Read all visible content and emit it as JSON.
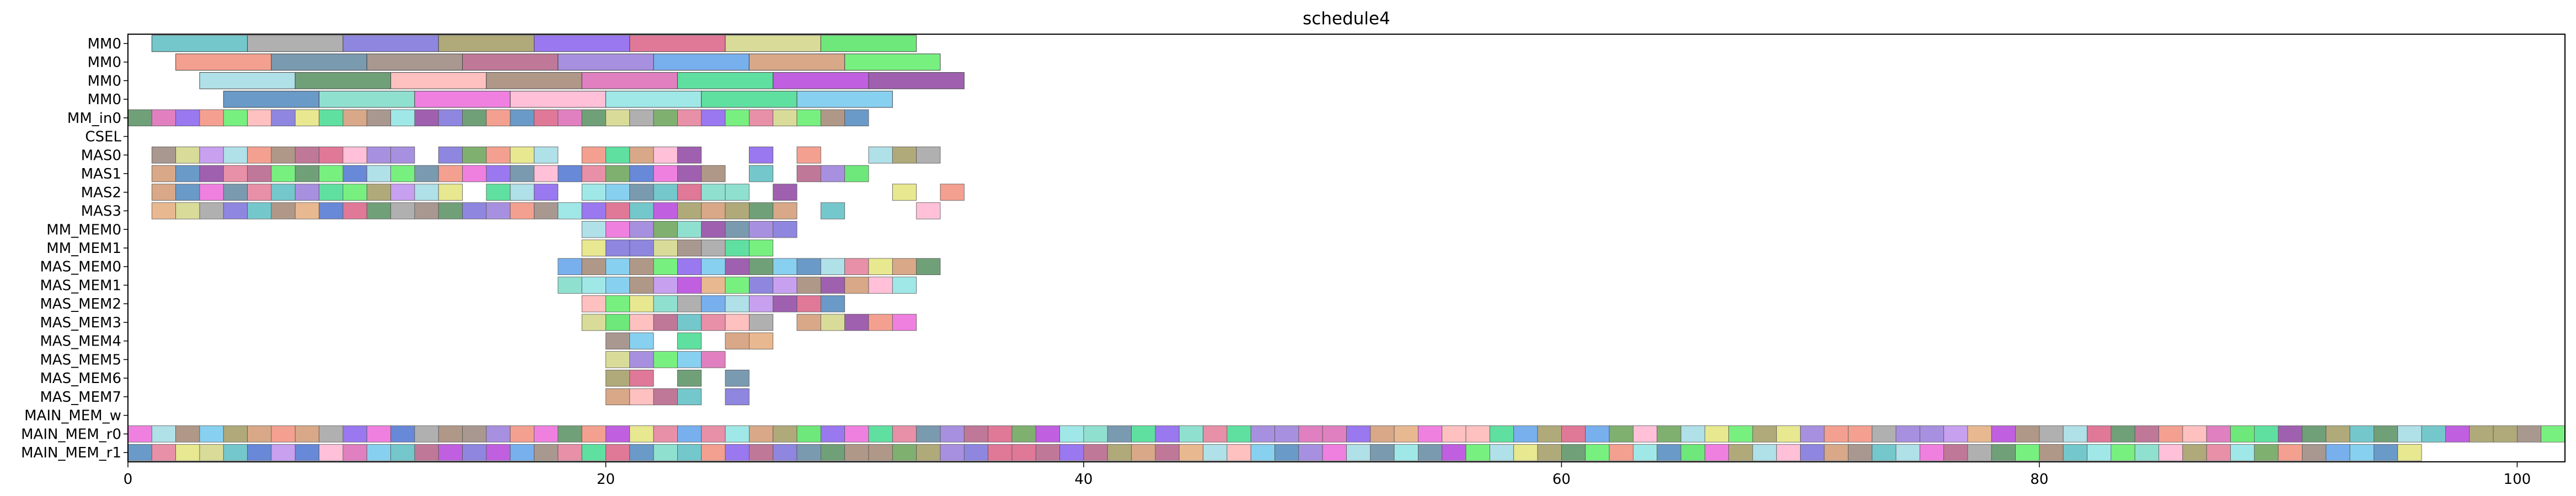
{
  "chart_data": {
    "type": "gantt",
    "title": "schedule4",
    "xlabel": "",
    "ylabel": "",
    "xlim": [
      0,
      102
    ],
    "xticks": [
      0,
      20,
      40,
      60,
      80,
      100
    ],
    "rows": [
      "MM0",
      "MM0",
      "MM0",
      "MM0",
      "MM_in0",
      "CSEL",
      "MAS0",
      "MAS1",
      "MAS2",
      "MAS3",
      "MM_MEM0",
      "MM_MEM1",
      "MAS_MEM0",
      "MAS_MEM1",
      "MAS_MEM2",
      "MAS_MEM3",
      "MAS_MEM4",
      "MAS_MEM5",
      "MAS_MEM6",
      "MAS_MEM7",
      "MAIN_MEM_w",
      "MAIN_MEM_r0",
      "MAIN_MEM_r1"
    ],
    "palette": [
      "#74c8cc",
      "#b0b0b0",
      "#8f86e0",
      "#b0aa7a",
      "#9a78f0",
      "#e07898",
      "#d8dc98",
      "#6ee87a",
      "#f4a090",
      "#7a9ab0",
      "#a89890",
      "#c07898",
      "#a890e0",
      "#78b0ee",
      "#d8a888",
      "#78f080",
      "#b0e0e8",
      "#70a078",
      "#ffc0c0",
      "#b09888",
      "#e080c0",
      "#60e0a0",
      "#c060e0",
      "#a060b0",
      "#6a9ac8",
      "#90e0d0",
      "#f080e0",
      "#ffc0d8",
      "#a0e8e8",
      "#e8b890",
      "#6888d8",
      "#e8e890",
      "#88d0f0",
      "#80b070",
      "#e890a8",
      "#c8a0f0"
    ],
    "y_labels_shown": [
      "MM0",
      "MM0",
      "MM0",
      "MM0",
      "MM_in0",
      "CSEL",
      "MAS0",
      "MAS1",
      "MAS2",
      "MAS3",
      "MM_MEM0",
      "MM_MEM1",
      "MAS_MEM0",
      "MAS_MEM1",
      "MAS_MEM2",
      "MAS_MEM3",
      "MAS_MEM4",
      "MAS_MEM5",
      "MAS_MEM6",
      "MAS_MEM7",
      "MAIN_MEM_w",
      "MAIN_MEM_r0",
      "MAIN_MEM_r1"
    ],
    "tasks": [
      {
        "row": 0,
        "start": 1,
        "dur": 4,
        "c": 0
      },
      {
        "row": 0,
        "start": 5,
        "dur": 4,
        "c": 1
      },
      {
        "row": 0,
        "start": 9,
        "dur": 4,
        "c": 2
      },
      {
        "row": 0,
        "start": 13,
        "dur": 4,
        "c": 3
      },
      {
        "row": 0,
        "start": 17,
        "dur": 4,
        "c": 4
      },
      {
        "row": 0,
        "start": 21,
        "dur": 4,
        "c": 5
      },
      {
        "row": 0,
        "start": 25,
        "dur": 4,
        "c": 6
      },
      {
        "row": 0,
        "start": 29,
        "dur": 4,
        "c": 7
      },
      {
        "row": 1,
        "start": 2,
        "dur": 4,
        "c": 8
      },
      {
        "row": 1,
        "start": 6,
        "dur": 4,
        "c": 9
      },
      {
        "row": 1,
        "start": 10,
        "dur": 4,
        "c": 10
      },
      {
        "row": 1,
        "start": 14,
        "dur": 4,
        "c": 11
      },
      {
        "row": 1,
        "start": 18,
        "dur": 4,
        "c": 12
      },
      {
        "row": 1,
        "start": 22,
        "dur": 4,
        "c": 13
      },
      {
        "row": 1,
        "start": 26,
        "dur": 4,
        "c": 14
      },
      {
        "row": 1,
        "start": 30,
        "dur": 4,
        "c": 15
      },
      {
        "row": 2,
        "start": 3,
        "dur": 4,
        "c": 16
      },
      {
        "row": 2,
        "start": 7,
        "dur": 4,
        "c": 17
      },
      {
        "row": 2,
        "start": 11,
        "dur": 4,
        "c": 18
      },
      {
        "row": 2,
        "start": 15,
        "dur": 4,
        "c": 19
      },
      {
        "row": 2,
        "start": 19,
        "dur": 4,
        "c": 20
      },
      {
        "row": 2,
        "start": 23,
        "dur": 4,
        "c": 21
      },
      {
        "row": 2,
        "start": 27,
        "dur": 4,
        "c": 22
      },
      {
        "row": 2,
        "start": 31,
        "dur": 4,
        "c": 23
      },
      {
        "row": 3,
        "start": 4,
        "dur": 4,
        "c": 24
      },
      {
        "row": 3,
        "start": 8,
        "dur": 4,
        "c": 25
      },
      {
        "row": 3,
        "start": 12,
        "dur": 4,
        "c": 26
      },
      {
        "row": 3,
        "start": 16,
        "dur": 4,
        "c": 27
      },
      {
        "row": 3,
        "start": 20,
        "dur": 4,
        "c": 28
      },
      {
        "row": 3,
        "start": 24,
        "dur": 4,
        "c": 21
      },
      {
        "row": 3,
        "start": 28,
        "dur": 4,
        "c": 32
      }
    ],
    "unit_rows": [
      {
        "row": 4,
        "ranges": [
          [
            0,
            31
          ]
        ]
      },
      {
        "row": 6,
        "ranges": [
          [
            1,
            12
          ],
          [
            13,
            18
          ],
          [
            19,
            24
          ],
          [
            26,
            27
          ],
          [
            28,
            29
          ],
          [
            31,
            34
          ]
        ]
      },
      {
        "row": 7,
        "ranges": [
          [
            1,
            25
          ],
          [
            26,
            27
          ],
          [
            28,
            31
          ]
        ]
      },
      {
        "row": 8,
        "ranges": [
          [
            1,
            14
          ],
          [
            15,
            18
          ],
          [
            19,
            26
          ],
          [
            27,
            28
          ],
          [
            32,
            33
          ],
          [
            34,
            35
          ]
        ]
      },
      {
        "row": 9,
        "ranges": [
          [
            1,
            28
          ],
          [
            29,
            30
          ],
          [
            33,
            34
          ]
        ]
      },
      {
        "row": 10,
        "ranges": [
          [
            19,
            28
          ]
        ]
      },
      {
        "row": 11,
        "ranges": [
          [
            19,
            27
          ]
        ]
      },
      {
        "row": 12,
        "ranges": [
          [
            18,
            34
          ]
        ]
      },
      {
        "row": 13,
        "ranges": [
          [
            18,
            29
          ],
          [
            29,
            33
          ]
        ]
      },
      {
        "row": 14,
        "ranges": [
          [
            19,
            30
          ]
        ]
      },
      {
        "row": 15,
        "ranges": [
          [
            19,
            27
          ],
          [
            28,
            29
          ],
          [
            29,
            33
          ]
        ]
      },
      {
        "row": 16,
        "ranges": [
          [
            20,
            21
          ],
          [
            21,
            22
          ],
          [
            23,
            24
          ],
          [
            25,
            26
          ],
          [
            26,
            27
          ]
        ]
      },
      {
        "row": 17,
        "ranges": [
          [
            20,
            25
          ]
        ]
      },
      {
        "row": 18,
        "ranges": [
          [
            20,
            21
          ],
          [
            21,
            22
          ],
          [
            23,
            24
          ],
          [
            25,
            26
          ]
        ]
      },
      {
        "row": 19,
        "ranges": [
          [
            20,
            24
          ],
          [
            25,
            26
          ]
        ]
      },
      {
        "row": 21,
        "ranges": [
          [
            0,
            102
          ]
        ]
      },
      {
        "row": 22,
        "ranges": [
          [
            0,
            96
          ]
        ]
      }
    ]
  }
}
